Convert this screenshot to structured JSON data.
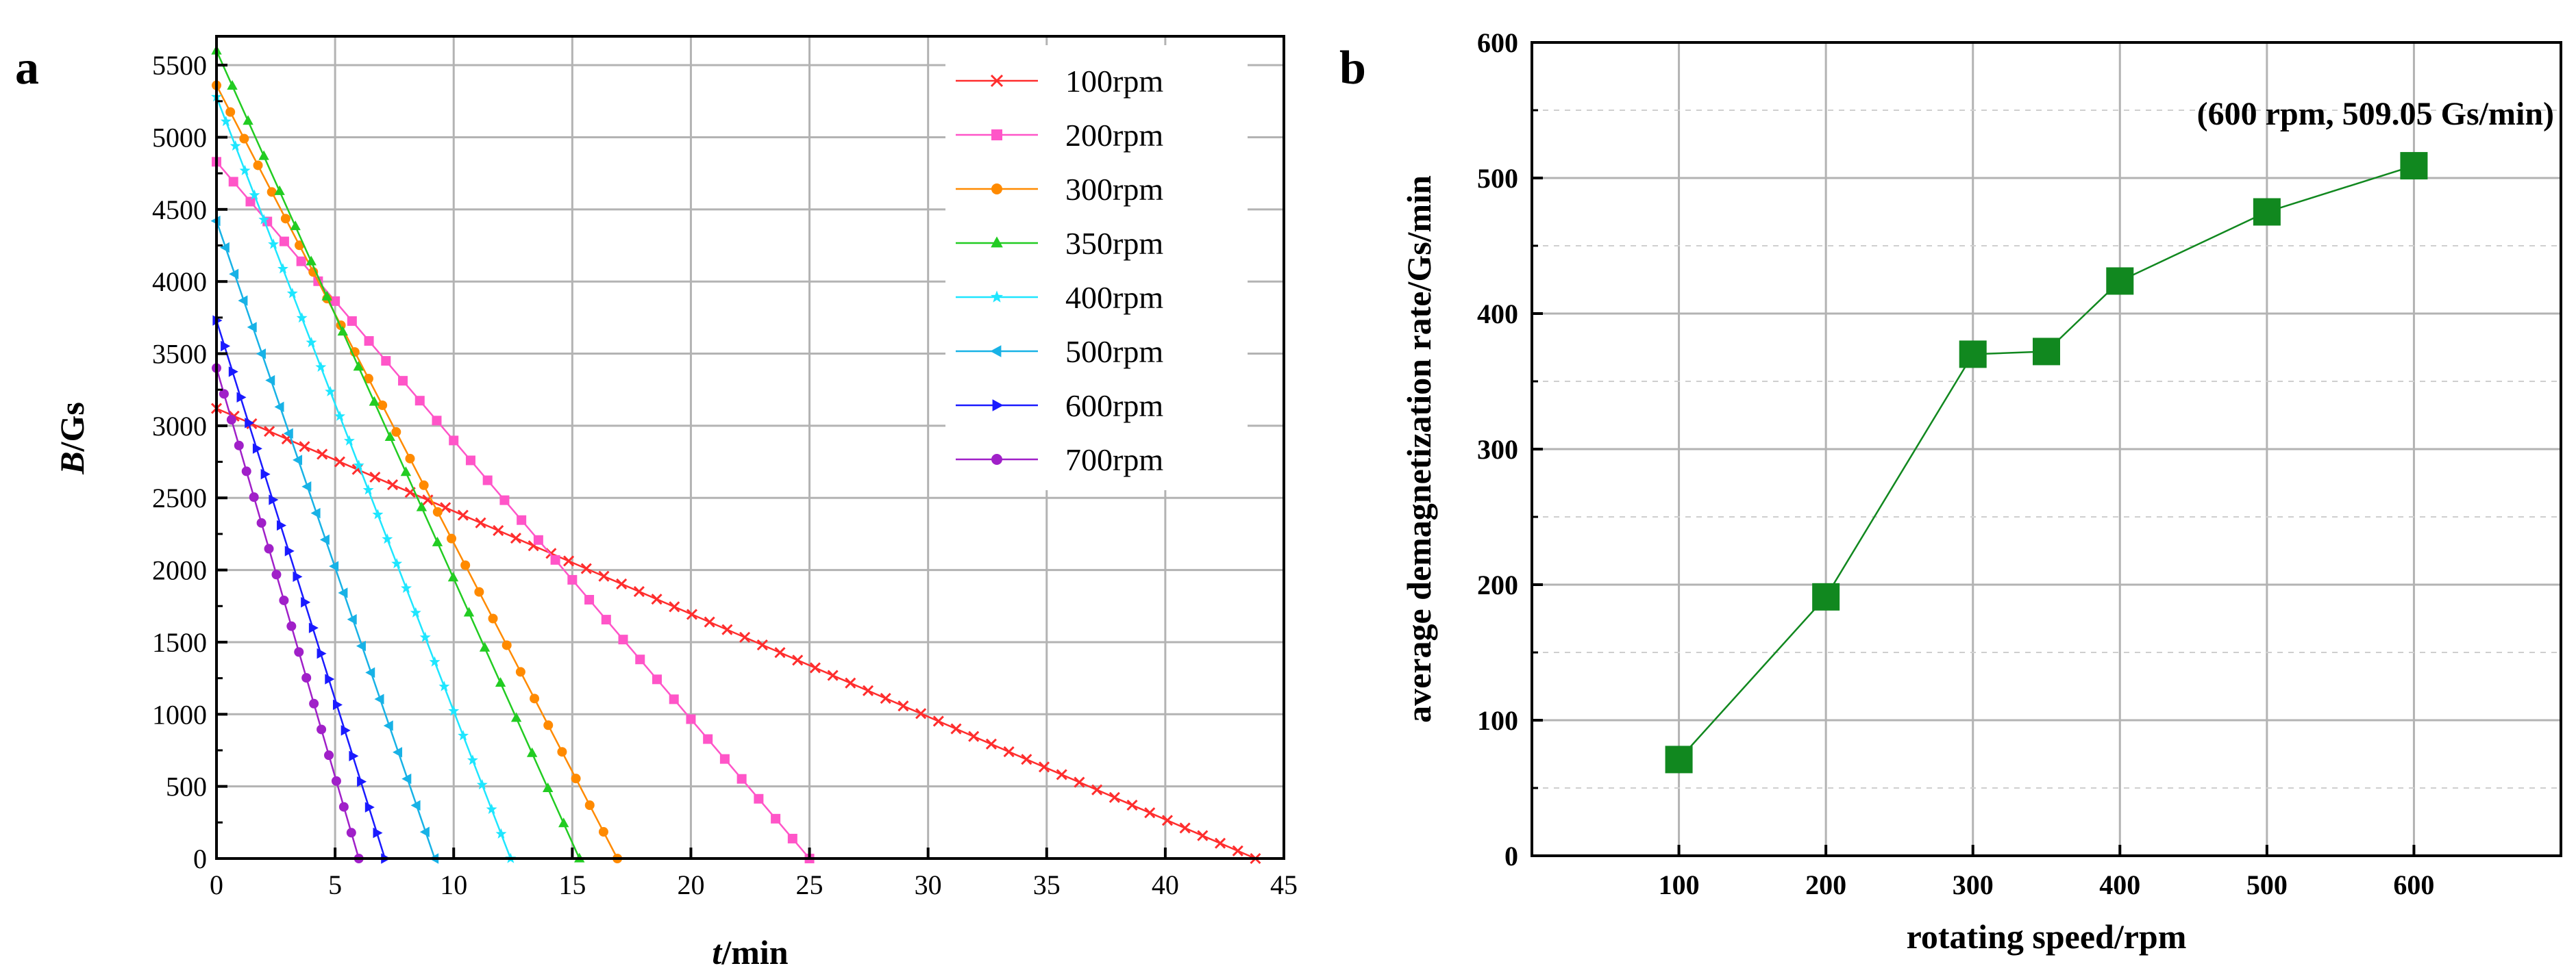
{
  "figure": {
    "panel_a_label": "a",
    "panel_b_label": "b"
  },
  "chart_data": [
    {
      "id": "a",
      "type": "line",
      "title": "",
      "xlabel_italic": "t",
      "xlabel_rest": "/min",
      "ylabel_italic": "B",
      "ylabel_rest": "/Gs",
      "xlim": [
        0,
        45
      ],
      "ylim": [
        0,
        5700
      ],
      "xticks": [
        0,
        5,
        10,
        15,
        20,
        25,
        30,
        35,
        40,
        45
      ],
      "yticks": [
        0,
        500,
        1000,
        1500,
        2000,
        2500,
        3000,
        3500,
        4000,
        4500,
        5000,
        5500
      ],
      "grid": true,
      "legend_position": "top-right",
      "series": [
        {
          "name": "100rpm",
          "color": "#ff2d2d",
          "marker": "x",
          "start": [
            0,
            3120
          ],
          "end": [
            43.8,
            0
          ],
          "points": 60
        },
        {
          "name": "200rpm",
          "color": "#ff55c8",
          "marker": "square",
          "start": [
            0,
            4830
          ],
          "end": [
            25.0,
            0
          ],
          "points": 36
        },
        {
          "name": "300rpm",
          "color": "#ff8a00",
          "marker": "circle",
          "start": [
            0,
            5360
          ],
          "end": [
            16.9,
            0
          ],
          "points": 30
        },
        {
          "name": "350rpm",
          "color": "#22cc22",
          "marker": "triangle-up",
          "start": [
            0,
            5600
          ],
          "end": [
            15.3,
            0
          ],
          "points": 24
        },
        {
          "name": "400rpm",
          "color": "#1ee6ff",
          "marker": "star",
          "start": [
            0,
            5280
          ],
          "end": [
            12.4,
            0
          ],
          "points": 32
        },
        {
          "name": "500rpm",
          "color": "#18b2e6",
          "marker": "triangle-left",
          "start": [
            0,
            4420
          ],
          "end": [
            9.2,
            0
          ],
          "points": 25
        },
        {
          "name": "600rpm",
          "color": "#1a1aff",
          "marker": "triangle-right",
          "start": [
            0,
            3730
          ],
          "end": [
            7.1,
            0
          ],
          "points": 22
        },
        {
          "name": "700rpm",
          "color": "#a020c8",
          "marker": "circle",
          "start": [
            0,
            3400
          ],
          "end": [
            6.0,
            0
          ],
          "points": 20
        }
      ]
    },
    {
      "id": "b",
      "type": "line",
      "title": "",
      "xlabel": "rotating speed/rpm",
      "ylabel": "average demagnetization rate/Gs/min",
      "xlim": [
        0,
        700
      ],
      "ylim": [
        0,
        600
      ],
      "xticks": [
        100,
        200,
        300,
        400,
        500,
        600
      ],
      "yticks": [
        0,
        100,
        200,
        300,
        400,
        500,
        600
      ],
      "grid": true,
      "series": [
        {
          "name": "average demagnetization rate",
          "color": "#11881f",
          "marker": "square",
          "x": [
            100,
            200,
            300,
            350,
            400,
            500,
            600
          ],
          "y": [
            71,
            191,
            370,
            372,
            424,
            475,
            509.05
          ]
        }
      ],
      "annotation": {
        "text": "(600 rpm, 509.05 Gs/min)",
        "color": "#ff1010"
      }
    }
  ]
}
